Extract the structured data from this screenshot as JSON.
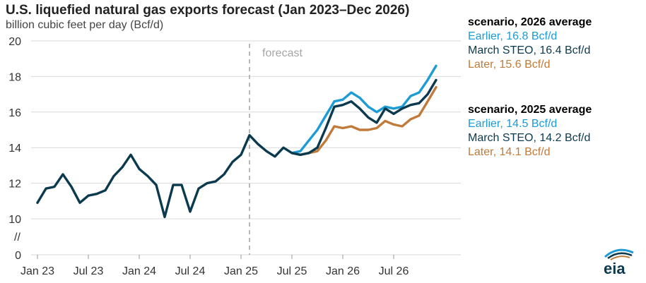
{
  "header": {
    "title": "U.S. liquefied natural gas exports forecast (Jan 2023–Dec 2026)",
    "subtitle": "billion cubic feet per day (Bcf/d)"
  },
  "legend": {
    "y2026": {
      "heading": "scenario, 2026 average",
      "earlier": "Earlier, 16.8 Bcf/d",
      "march": "March STEO, 16.4 Bcf/d",
      "later": "Later, 15.6 Bcf/d"
    },
    "y2025": {
      "heading": "scenario, 2025 average",
      "earlier": "Earlier, 14.5 Bcf/d",
      "march": "March STEO, 14.2 Bcf/d",
      "later": "Later, 14.1 Bcf/d"
    }
  },
  "logo": {
    "text": "eia"
  },
  "colors": {
    "march": "#0b3a4f",
    "earlier": "#1c9bd5",
    "later": "#c07a3a",
    "forecast_line": "#a6a6a6",
    "grid": "#d9d9d9"
  },
  "chart_data": {
    "type": "line",
    "title": "U.S. liquefied natural gas exports forecast (Jan 2023–Dec 2026)",
    "ylabel": "billion cubic feet per day (Bcf/d)",
    "ylim": [
      0,
      20
    ],
    "y_axis_break": "//",
    "yticks": [
      "0",
      "10",
      "12",
      "14",
      "16",
      "18",
      "20"
    ],
    "xlim": [
      "2023-01",
      "2026-12"
    ],
    "xticks": [
      "Jan 23",
      "Jul 23",
      "Jan 24",
      "Jul 24",
      "Jan 25",
      "Jul 25",
      "Jan 26",
      "Jul 26"
    ],
    "forecast_start": "2025-02",
    "forecast_label": "forecast",
    "grid": true,
    "months": [
      "2023-01",
      "2023-02",
      "2023-03",
      "2023-04",
      "2023-05",
      "2023-06",
      "2023-07",
      "2023-08",
      "2023-09",
      "2023-10",
      "2023-11",
      "2023-12",
      "2024-01",
      "2024-02",
      "2024-03",
      "2024-04",
      "2024-05",
      "2024-06",
      "2024-07",
      "2024-08",
      "2024-09",
      "2024-10",
      "2024-11",
      "2024-12",
      "2025-01",
      "2025-02",
      "2025-03",
      "2025-04",
      "2025-05",
      "2025-06",
      "2025-07",
      "2025-08",
      "2025-09",
      "2025-10",
      "2025-11",
      "2025-12",
      "2026-01",
      "2026-02",
      "2026-03",
      "2026-04",
      "2026-05",
      "2026-06",
      "2026-07",
      "2026-08",
      "2026-09",
      "2026-10",
      "2026-11",
      "2026-12"
    ],
    "series": [
      {
        "name": "March STEO",
        "color_key": "march",
        "start": 0,
        "values": [
          10.9,
          11.7,
          11.8,
          12.5,
          11.8,
          10.9,
          11.3,
          11.4,
          11.6,
          12.4,
          12.9,
          13.6,
          12.8,
          12.4,
          11.9,
          10.1,
          11.9,
          11.9,
          10.4,
          11.7,
          12.0,
          12.1,
          12.5,
          13.2,
          13.6,
          14.7,
          14.2,
          13.8,
          13.5,
          14.0,
          13.7,
          13.6,
          13.7,
          14.0,
          15.1,
          16.3,
          16.4,
          16.6,
          16.2,
          15.7,
          15.4,
          16.2,
          15.9,
          16.2,
          16.4,
          16.5,
          17.0,
          17.8
        ]
      },
      {
        "name": "Earlier",
        "color_key": "earlier",
        "start": 30,
        "values": [
          13.7,
          13.8,
          14.4,
          15.0,
          15.8,
          16.6,
          16.7,
          17.1,
          16.8,
          16.3,
          16.0,
          16.3,
          16.2,
          16.3,
          16.9,
          17.1,
          17.8,
          18.6
        ]
      },
      {
        "name": "Later",
        "color_key": "later",
        "start": 30,
        "values": [
          13.7,
          13.6,
          13.7,
          13.8,
          14.4,
          15.2,
          15.1,
          15.2,
          15.0,
          15.0,
          15.1,
          15.5,
          15.3,
          15.2,
          15.6,
          15.8,
          16.6,
          17.4
        ]
      }
    ]
  }
}
